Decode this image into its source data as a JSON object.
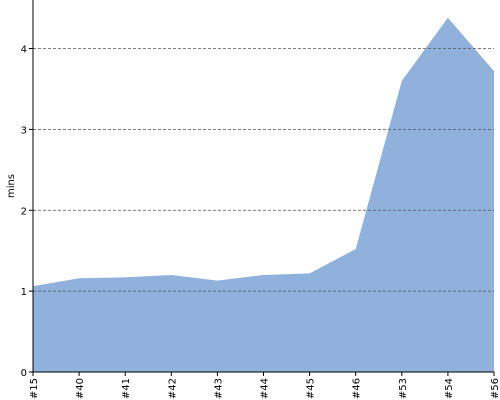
{
  "chart_data": {
    "type": "area",
    "y_label": "mins",
    "categories": [
      "#15",
      "#40",
      "#41",
      "#42",
      "#43",
      "#44",
      "#45",
      "#46",
      "#53",
      "#54",
      "#56"
    ],
    "values": [
      1.06,
      1.16,
      1.17,
      1.2,
      1.13,
      1.2,
      1.22,
      1.52,
      3.6,
      4.38,
      3.72
    ],
    "color": "#8fb1db",
    "ylim": [
      0,
      4.6
    ],
    "yticks": [
      0,
      1,
      2,
      3,
      4
    ],
    "grid": true
  }
}
